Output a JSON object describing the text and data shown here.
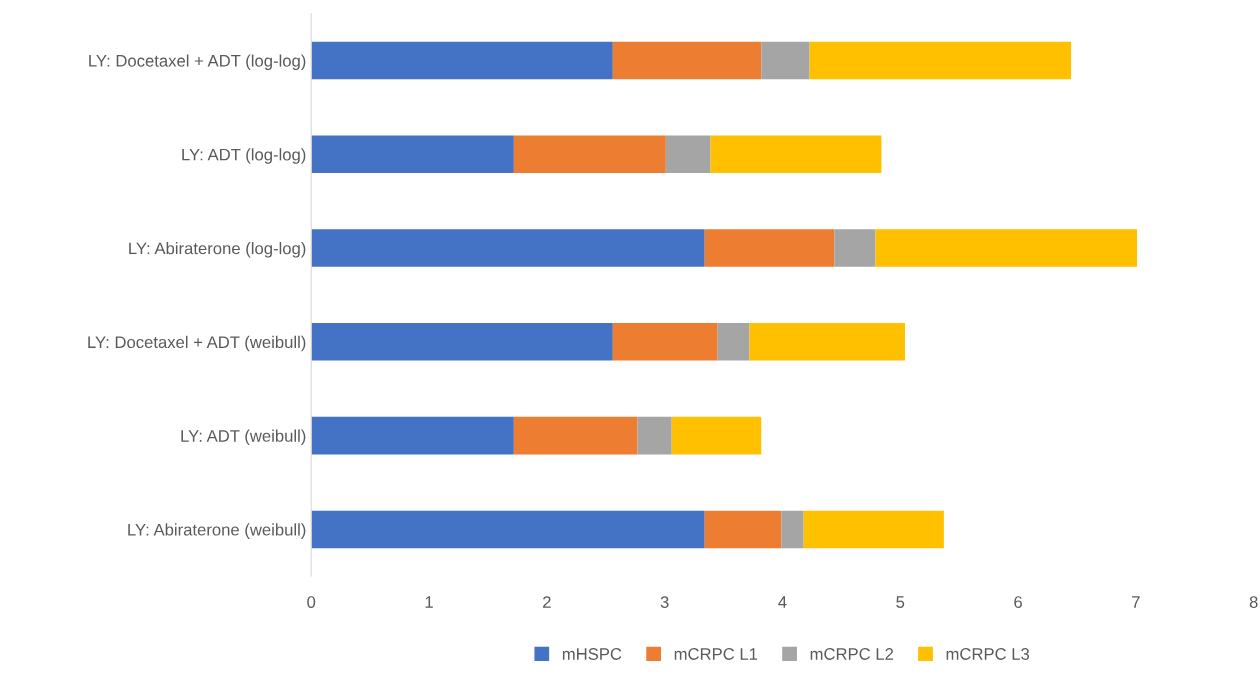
{
  "chart_data": {
    "type": "bar",
    "orientation": "horizontal",
    "stacked": true,
    "categories": [
      "LY: Docetaxel + ADT (log-log)",
      "LY: ADT (log-log)",
      "LY: Abiraterone (log-log)",
      "LY: Docetaxel + ADT (weibull)",
      "LY: ADT (weibull)",
      "LY: Abiraterone (weibull)"
    ],
    "series": [
      {
        "name": "mHSPC",
        "color": "#4472c4",
        "values": [
          2.56,
          1.72,
          3.34,
          2.56,
          1.72,
          3.34
        ]
      },
      {
        "name": "mCRPC L1",
        "color": "#ed7d31",
        "values": [
          1.26,
          1.29,
          1.1,
          0.89,
          1.05,
          0.65
        ]
      },
      {
        "name": "mCRPC L2",
        "color": "#a5a5a5",
        "values": [
          0.41,
          0.38,
          0.35,
          0.27,
          0.29,
          0.19
        ]
      },
      {
        "name": "mCRPC L3",
        "color": "#ffc000",
        "values": [
          2.22,
          1.45,
          2.22,
          1.32,
          0.76,
          1.19
        ]
      }
    ],
    "xlim": [
      0,
      8
    ],
    "xticks": [
      0,
      1,
      2,
      3,
      4,
      5,
      6,
      7,
      8
    ],
    "grid": false,
    "legend": "bottom"
  }
}
